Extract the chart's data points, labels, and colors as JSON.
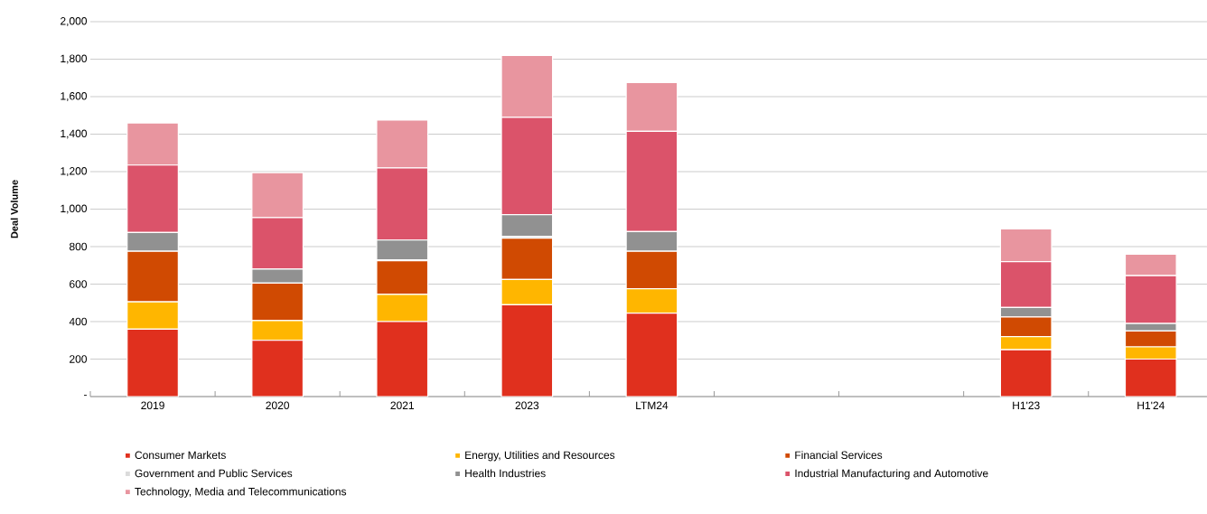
{
  "chart_data": {
    "type": "bar",
    "stacked": true,
    "ylabel": "Deal Volume",
    "categories": [
      "2019",
      "2020",
      "2021",
      "2023",
      "LTM24",
      null,
      null,
      "H1'23",
      "H1'24"
    ],
    "series": [
      {
        "name": "Consumer Markets",
        "color": "#e0301e",
        "values": [
          360,
          300,
          400,
          490,
          445,
          null,
          null,
          250,
          200
        ]
      },
      {
        "name": "Energy, Utilities and Resources",
        "color": "#ffb600",
        "values": [
          145,
          105,
          145,
          135,
          130,
          null,
          null,
          70,
          65
        ]
      },
      {
        "name": "Financial Services",
        "color": "#d04a02",
        "values": [
          270,
          200,
          180,
          220,
          200,
          null,
          null,
          105,
          85
        ]
      },
      {
        "name": "Government and Public Services",
        "color": "#dbdbdb",
        "values": [
          null,
          null,
          5,
          10,
          null,
          null,
          null,
          null,
          null
        ]
      },
      {
        "name": "Health Industries",
        "color": "#919191",
        "values": [
          100,
          75,
          105,
          115,
          105,
          null,
          null,
          50,
          40
        ]
      },
      {
        "name": "Industrial Manufacturing and Automotive",
        "color": "#db536a",
        "values": [
          360,
          275,
          385,
          520,
          535,
          null,
          null,
          245,
          255
        ]
      },
      {
        "name": "Technology, Media and Telecommunications",
        "color": "#e8959f",
        "values": [
          225,
          240,
          255,
          330,
          260,
          null,
          null,
          175,
          115
        ]
      }
    ],
    "ylim": [
      0,
      2000
    ],
    "yticks": [
      {
        "value": 0,
        "label": "-"
      },
      200,
      400,
      600,
      800,
      {
        "value": 1000,
        "label": "1,000"
      },
      {
        "value": 1200,
        "label": "1,200"
      },
      {
        "value": 1400,
        "label": "1,400"
      },
      {
        "value": 1600,
        "label": "1,600"
      },
      {
        "value": 1800,
        "label": "1,800"
      },
      {
        "value": 2000,
        "label": "2,000"
      }
    ],
    "grid": "y",
    "legend": "bottom"
  }
}
